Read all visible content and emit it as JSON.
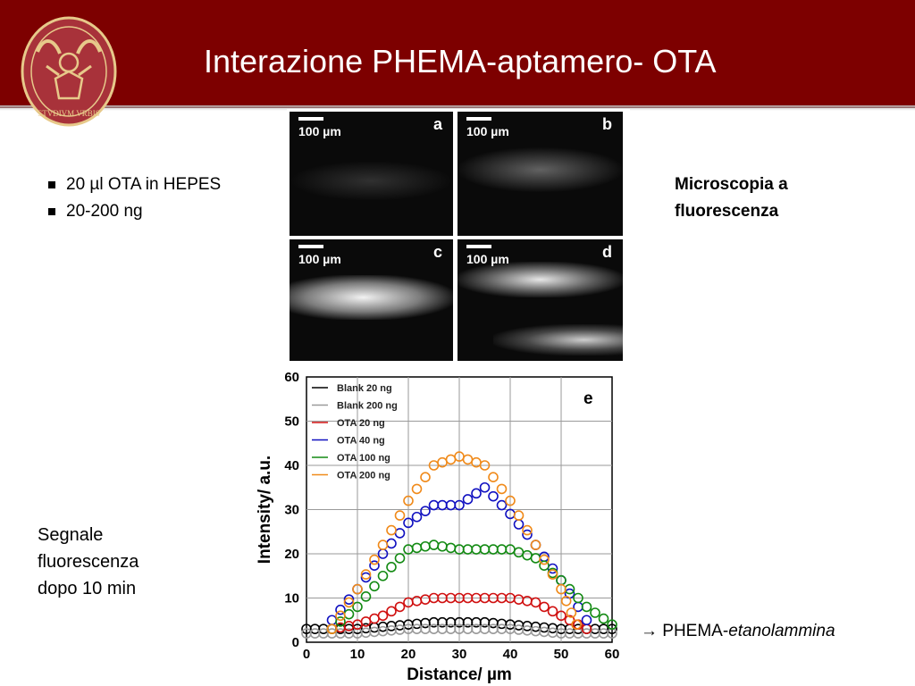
{
  "slide": {
    "title": "Interazione PHEMA-aptamero- OTA",
    "logo_text": "STVDIVM VRBIS"
  },
  "bullets": [
    "20 µl OTA in HEPES",
    "20-200 ng"
  ],
  "microscopy_label": [
    "Microscopia a",
    "fluorescenza"
  ],
  "signal_label": [
    "Segnale",
    "fluorescenza",
    "dopo 10 min"
  ],
  "note": {
    "arrow": "→",
    "prefix": "PHEMA-",
    "italic": "etanolammina"
  },
  "panels": [
    {
      "letter": "a",
      "scale": "100 µm"
    },
    {
      "letter": "b",
      "scale": "100 µm"
    },
    {
      "letter": "c",
      "scale": "100 µm"
    },
    {
      "letter": "d",
      "scale": "100 µm"
    }
  ],
  "colors": {
    "header": "#7d0000",
    "logo": "#a8323a",
    "logo_gold": "#e7c98a"
  },
  "chart_data": {
    "type": "scatter",
    "panel_label": "e",
    "xlabel": "Distance/ µm",
    "ylabel": "Intensity/ a.u.",
    "xlim": [
      0,
      60
    ],
    "ylim": [
      0,
      60
    ],
    "xticks": [
      0,
      10,
      20,
      30,
      40,
      50,
      60
    ],
    "yticks": [
      0,
      10,
      20,
      30,
      40,
      50,
      60
    ],
    "grid": true,
    "legend_position": "top-left",
    "series": [
      {
        "name": "Blank 20 ng",
        "color": "#000000",
        "points": [
          [
            0,
            3
          ],
          [
            5,
            3
          ],
          [
            10,
            3
          ],
          [
            15,
            3.5
          ],
          [
            20,
            4
          ],
          [
            25,
            4.5
          ],
          [
            30,
            4.5
          ],
          [
            35,
            4.5
          ],
          [
            40,
            4
          ],
          [
            45,
            3.5
          ],
          [
            50,
            3
          ],
          [
            55,
            3
          ],
          [
            60,
            3
          ]
        ]
      },
      {
        "name": "Blank 200 ng",
        "color": "#9a9a9a",
        "points": [
          [
            0,
            2
          ],
          [
            5,
            2
          ],
          [
            10,
            2
          ],
          [
            15,
            2.5
          ],
          [
            20,
            3
          ],
          [
            25,
            3
          ],
          [
            30,
            3
          ],
          [
            35,
            3
          ],
          [
            40,
            3
          ],
          [
            45,
            2.5
          ],
          [
            50,
            2
          ],
          [
            55,
            2
          ],
          [
            60,
            2
          ]
        ]
      },
      {
        "name": "OTA 20 ng",
        "color": "#d01010",
        "points": [
          [
            5,
            3
          ],
          [
            10,
            4
          ],
          [
            15,
            6
          ],
          [
            20,
            9
          ],
          [
            25,
            10
          ],
          [
            30,
            10
          ],
          [
            35,
            10
          ],
          [
            40,
            10
          ],
          [
            45,
            9
          ],
          [
            50,
            6
          ],
          [
            55,
            3
          ]
        ]
      },
      {
        "name": "OTA 40 ng",
        "color": "#1010c0",
        "points": [
          [
            5,
            5
          ],
          [
            10,
            12
          ],
          [
            15,
            20
          ],
          [
            20,
            27
          ],
          [
            25,
            31
          ],
          [
            30,
            31
          ],
          [
            35,
            35
          ],
          [
            40,
            29
          ],
          [
            45,
            22
          ],
          [
            50,
            14
          ],
          [
            55,
            5
          ]
        ]
      },
      {
        "name": "OTA 100 ng",
        "color": "#138a13",
        "points": [
          [
            5,
            3
          ],
          [
            10,
            8
          ],
          [
            15,
            15
          ],
          [
            20,
            21
          ],
          [
            25,
            22
          ],
          [
            30,
            21
          ],
          [
            35,
            21
          ],
          [
            40,
            21
          ],
          [
            45,
            19
          ],
          [
            50,
            14
          ],
          [
            55,
            8
          ],
          [
            60,
            4
          ]
        ]
      },
      {
        "name": "OTA 200 ng",
        "color": "#f08a1a",
        "points": [
          [
            5,
            3
          ],
          [
            10,
            12
          ],
          [
            15,
            22
          ],
          [
            20,
            32
          ],
          [
            25,
            40
          ],
          [
            30,
            42
          ],
          [
            35,
            40
          ],
          [
            40,
            32
          ],
          [
            45,
            22
          ],
          [
            50,
            12
          ],
          [
            53,
            4
          ]
        ]
      }
    ]
  }
}
